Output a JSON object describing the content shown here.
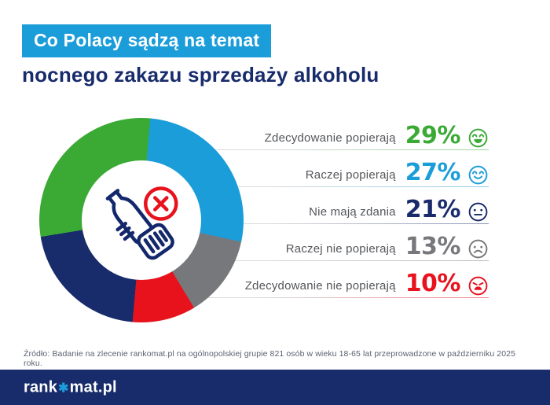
{
  "header": {
    "badge": "Co Polacy sądzą na temat",
    "subtitle": "nocnego zakazu sprzedaży alkoholu"
  },
  "colors": {
    "accent_blue": "#1b9dd9",
    "navy": "#182b6b",
    "green": "#3aaa35",
    "gray": "#77787b",
    "red": "#e8121d",
    "label_gray": "#54565a",
    "line_gray": "#d9dbdc"
  },
  "chart_data": {
    "type": "pie",
    "donut": true,
    "title": "Co Polacy sądzą na temat nocnego zakazu sprzedaży alkoholu",
    "categories": [
      "Zdecydowanie popierają",
      "Raczej popierają",
      "Nie mają zdania",
      "Raczej nie popierają",
      "Zdecydowanie nie popierają"
    ],
    "values": [
      29,
      27,
      21,
      13,
      10
    ],
    "unit": "%",
    "colors": [
      "#3aaa35",
      "#1b9dd9",
      "#182b6b",
      "#77787b",
      "#e8121d"
    ],
    "slice_order_clockwise_from_top": [
      "Raczej popierają",
      "Raczej nie popierają",
      "Zdecydowanie nie popierają",
      "Nie mają zdania",
      "Zdecydowanie popierają"
    ],
    "start_angle_deg": 5,
    "legend_position": "right",
    "center_icon": "no-alcohol-icon"
  },
  "legend": {
    "rows": [
      {
        "label": "Zdecydowanie popierają",
        "value": "29%",
        "color": "#3aaa35",
        "emoji": "grin"
      },
      {
        "label": "Raczej popierają",
        "value": "27%",
        "color": "#1b9dd9",
        "emoji": "smile"
      },
      {
        "label": "Nie mają zdania",
        "value": "21%",
        "color": "#182b6b",
        "emoji": "neutral"
      },
      {
        "label": "Raczej nie popierają",
        "value": "13%",
        "color": "#77787b",
        "emoji": "frown"
      },
      {
        "label": "Zdecydowanie nie popierają",
        "value": "10%",
        "color": "#e8121d",
        "emoji": "angry"
      }
    ]
  },
  "source": "Źródło: Badanie na zlecenie rankomat.pl na ogólnopolskiej grupie 821 osób w wieku 18-65 lat przeprowadzone w październiku 2025 roku.",
  "footer": {
    "logo_prefix": "rank",
    "logo_star": "✱",
    "logo_suffix": "mat.pl"
  }
}
